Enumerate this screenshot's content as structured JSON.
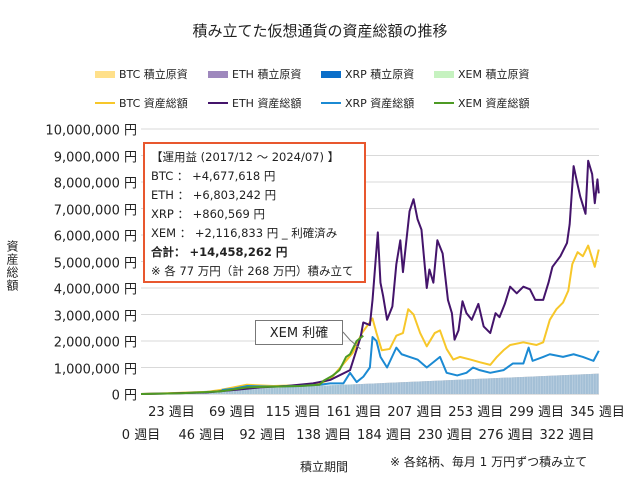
{
  "chart_data": {
    "type": "line",
    "title": "積み立てた仮想通貨の資産総額の推移",
    "ylabel": "資産総額",
    "xlabel": "積立期間",
    "ylim": [
      0,
      10000000
    ],
    "xlim": [
      0,
      346
    ],
    "grid": true,
    "legend_position": "top",
    "y_ticks": [
      "0 円",
      "1,000,000 円",
      "2,000,000 円",
      "3,000,000 円",
      "4,000,000 円",
      "5,000,000 円",
      "6,000,000 円",
      "7,000,000 円",
      "8,000,000 円",
      "9,000,000 円",
      "10,000,000 円"
    ],
    "y_tick_values": [
      0,
      1000000,
      2000000,
      3000000,
      4000000,
      5000000,
      6000000,
      7000000,
      8000000,
      9000000,
      10000000
    ],
    "x_ticks": [
      "0 週目",
      "23 週目",
      "46 週目",
      "69 週目",
      "92 週目",
      "115 週目",
      "138 週目",
      "161 週目",
      "184 週目",
      "207 週目",
      "230 週目",
      "253 週目",
      "276 週目",
      "299 週目",
      "322 週目",
      "345 週目"
    ],
    "x_tick_values": [
      0,
      23,
      46,
      69,
      92,
      115,
      138,
      161,
      184,
      207,
      230,
      253,
      276,
      299,
      322,
      345
    ],
    "legend": {
      "principal": [
        {
          "label": "BTC  積立原資",
          "color": "#ffe08a"
        },
        {
          "label": "ETH  積立原資",
          "color": "#9e88bd"
        },
        {
          "label": "XRP  積立原資",
          "color": "#0a6ec9"
        },
        {
          "label": "XEM  積立原資",
          "color": "#c6f2c0"
        }
      ],
      "total": [
        {
          "label": "BTC  資産総額",
          "color": "#f7c72a"
        },
        {
          "label": "ETH  資産総額",
          "color": "#44146b"
        },
        {
          "label": "XRP  資産総額",
          "color": "#1b8ad3"
        },
        {
          "label": "XEM  資産総額",
          "color": "#4d9a24"
        }
      ]
    },
    "principal_series": [
      {
        "name": "BTC 積立原資",
        "points": [
          [
            0,
            10000
          ],
          [
            346,
            770000
          ]
        ]
      },
      {
        "name": "ETH 積立原資",
        "points": [
          [
            0,
            10000
          ],
          [
            346,
            770000
          ]
        ]
      },
      {
        "name": "XEM 積立原資",
        "points": [
          [
            0,
            10000
          ],
          [
            161,
            370000
          ]
        ]
      },
      {
        "name": "XRP 積立原資",
        "points": [
          [
            0,
            10000
          ],
          [
            346,
            770000
          ]
        ]
      }
    ],
    "series": [
      {
        "name": "BTC 資産総額",
        "points": [
          [
            0,
            0
          ],
          [
            20,
            30000
          ],
          [
            50,
            80000
          ],
          [
            60,
            150000
          ],
          [
            80,
            350000
          ],
          [
            100,
            300000
          ],
          [
            120,
            330000
          ],
          [
            135,
            400000
          ],
          [
            143,
            550000
          ],
          [
            160,
            1550000
          ],
          [
            167,
            2300000
          ],
          [
            175,
            2850000
          ],
          [
            178,
            2300000
          ],
          [
            182,
            1650000
          ],
          [
            188,
            1700000
          ],
          [
            193,
            2200000
          ],
          [
            198,
            2300000
          ],
          [
            202,
            3200000
          ],
          [
            206,
            3000000
          ],
          [
            211,
            2300000
          ],
          [
            216,
            1800000
          ],
          [
            222,
            2300000
          ],
          [
            226,
            2400000
          ],
          [
            231,
            1700000
          ],
          [
            236,
            1300000
          ],
          [
            241,
            1400000
          ],
          [
            249,
            1300000
          ],
          [
            256,
            1200000
          ],
          [
            264,
            1100000
          ],
          [
            269,
            1400000
          ],
          [
            274,
            1650000
          ],
          [
            279,
            1850000
          ],
          [
            289,
            1950000
          ],
          [
            299,
            1850000
          ],
          [
            304,
            1950000
          ],
          [
            309,
            2800000
          ],
          [
            314,
            3200000
          ],
          [
            319,
            3450000
          ],
          [
            323,
            3900000
          ],
          [
            326,
            4900000
          ],
          [
            330,
            5350000
          ],
          [
            334,
            5200000
          ],
          [
            338,
            5600000
          ],
          [
            343,
            4800000
          ],
          [
            346,
            5450000
          ]
        ]
      },
      {
        "name": "ETH 資産総額",
        "points": [
          [
            0,
            0
          ],
          [
            20,
            20000
          ],
          [
            50,
            60000
          ],
          [
            70,
            150000
          ],
          [
            90,
            250000
          ],
          [
            110,
            300000
          ],
          [
            130,
            400000
          ],
          [
            143,
            530000
          ],
          [
            158,
            900000
          ],
          [
            166,
            2150000
          ],
          [
            168,
            2700000
          ],
          [
            173,
            2600000
          ],
          [
            175,
            3550000
          ],
          [
            179,
            6100000
          ],
          [
            181,
            4200000
          ],
          [
            183,
            3700000
          ],
          [
            186,
            2800000
          ],
          [
            190,
            3300000
          ],
          [
            193,
            4900000
          ],
          [
            196,
            5800000
          ],
          [
            198,
            4600000
          ],
          [
            203,
            6900000
          ],
          [
            206,
            7350000
          ],
          [
            209,
            6600000
          ],
          [
            212,
            6200000
          ],
          [
            216,
            4000000
          ],
          [
            218,
            4700000
          ],
          [
            221,
            4200000
          ],
          [
            224,
            5800000
          ],
          [
            228,
            5300000
          ],
          [
            232,
            3550000
          ],
          [
            235,
            3050000
          ],
          [
            237,
            2050000
          ],
          [
            240,
            2400000
          ],
          [
            243,
            3500000
          ],
          [
            246,
            3050000
          ],
          [
            250,
            2800000
          ],
          [
            255,
            3400000
          ],
          [
            259,
            2550000
          ],
          [
            264,
            2300000
          ],
          [
            268,
            3050000
          ],
          [
            271,
            2900000
          ],
          [
            275,
            3400000
          ],
          [
            279,
            4050000
          ],
          [
            284,
            3800000
          ],
          [
            289,
            4050000
          ],
          [
            294,
            3950000
          ],
          [
            298,
            3550000
          ],
          [
            304,
            3550000
          ],
          [
            308,
            4200000
          ],
          [
            311,
            4800000
          ],
          [
            317,
            5200000
          ],
          [
            322,
            5700000
          ],
          [
            324,
            6400000
          ],
          [
            327,
            8600000
          ],
          [
            330,
            7900000
          ],
          [
            332,
            7450000
          ],
          [
            336,
            6800000
          ],
          [
            338,
            8800000
          ],
          [
            341,
            8300000
          ],
          [
            343,
            7200000
          ],
          [
            345,
            8100000
          ],
          [
            346,
            7570000
          ]
        ]
      },
      {
        "name": "XRP 資産総額",
        "points": [
          [
            61,
            150000
          ],
          [
            70,
            200000
          ],
          [
            80,
            300000
          ],
          [
            100,
            280000
          ],
          [
            120,
            300000
          ],
          [
            135,
            350000
          ],
          [
            143,
            400000
          ],
          [
            153,
            400000
          ],
          [
            158,
            800000
          ],
          [
            163,
            450000
          ],
          [
            168,
            650000
          ],
          [
            173,
            1000000
          ],
          [
            175,
            2150000
          ],
          [
            178,
            2000000
          ],
          [
            181,
            1400000
          ],
          [
            186,
            1000000
          ],
          [
            193,
            1750000
          ],
          [
            197,
            1500000
          ],
          [
            203,
            1400000
          ],
          [
            209,
            1300000
          ],
          [
            216,
            1000000
          ],
          [
            226,
            1400000
          ],
          [
            231,
            800000
          ],
          [
            239,
            700000
          ],
          [
            246,
            800000
          ],
          [
            251,
            1000000
          ],
          [
            256,
            900000
          ],
          [
            264,
            800000
          ],
          [
            274,
            900000
          ],
          [
            281,
            1150000
          ],
          [
            289,
            1150000
          ],
          [
            293,
            1750000
          ],
          [
            296,
            1250000
          ],
          [
            304,
            1400000
          ],
          [
            309,
            1500000
          ],
          [
            319,
            1400000
          ],
          [
            327,
            1500000
          ],
          [
            334,
            1400000
          ],
          [
            342,
            1250000
          ],
          [
            346,
            1630000
          ]
        ]
      },
      {
        "name": "XEM 資産総額",
        "points": [
          [
            0,
            0
          ],
          [
            30,
            30000
          ],
          [
            60,
            100000
          ],
          [
            80,
            250000
          ],
          [
            100,
            280000
          ],
          [
            120,
            300000
          ],
          [
            135,
            350000
          ],
          [
            138,
            500000
          ],
          [
            145,
            700000
          ],
          [
            150,
            900000
          ],
          [
            155,
            1400000
          ],
          [
            158,
            1500000
          ],
          [
            163,
            2000000
          ],
          [
            168,
            2200000
          ]
        ]
      }
    ],
    "annotations": {
      "info_box": {
        "heading": "【運用益 (2017/12 ～ 2024/07) 】",
        "lines": [
          "BTC ： +4,677,618 円",
          "ETH ： +6,803,242 円",
          "XRP ： +860,569 円",
          "XEM ： +2,116,833 円 _ 利確済み"
        ],
        "total": "合計： +14,458,262 円",
        "footnote": "※ 各 77 万円（計 268 万円）積み立て"
      },
      "callout": {
        "label": "XEM 利確",
        "week": 166
      },
      "note": "※ 各銘柄、毎月 1 万円ずつ積み立て"
    }
  }
}
